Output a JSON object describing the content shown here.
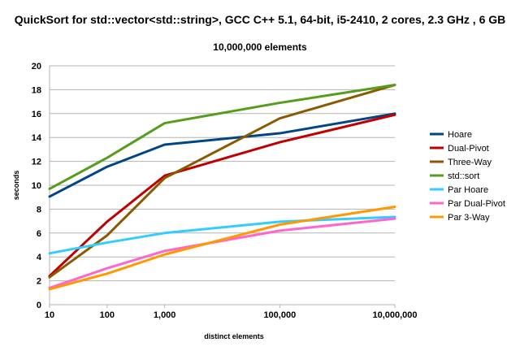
{
  "chart_data": {
    "type": "line",
    "title": "QuickSort for std::vector<std::string>, GCC C++ 5.1, 64-bit, i5-2410, 2 cores, 2.3 GHz , 6 GB",
    "subtitle": "10,000,000 elements",
    "xlabel": "distinct elements",
    "ylabel": "seconds",
    "x_scale": "log",
    "categories": [
      "10",
      "100",
      "1,000",
      "100,000",
      "10,000,000"
    ],
    "x": [
      10,
      100,
      1000,
      100000,
      10000000
    ],
    "ylim": [
      0,
      20
    ],
    "y_ticks": [
      0,
      2,
      4,
      6,
      8,
      10,
      12,
      14,
      16,
      18,
      20
    ],
    "grid": "horizontal",
    "legend_position": "right",
    "series": [
      {
        "name": "Hoare",
        "color": "#004586",
        "values": [
          9.05,
          11.55,
          13.4,
          14.35,
          16.0
        ]
      },
      {
        "name": "Dual-Pivot",
        "color": "#c00000",
        "values": [
          2.4,
          6.95,
          10.8,
          13.6,
          15.9
        ]
      },
      {
        "name": "Three-Way",
        "color": "#8b5a00",
        "values": [
          2.3,
          5.8,
          10.6,
          15.6,
          18.4
        ]
      },
      {
        "name": "std::sort",
        "color": "#579d1c",
        "values": [
          9.7,
          12.3,
          15.2,
          16.9,
          18.4
        ]
      },
      {
        "name": "Par Hoare",
        "color": "#33ccff",
        "values": [
          4.3,
          5.2,
          6.0,
          6.95,
          7.35
        ]
      },
      {
        "name": "Par Dual-Pivot",
        "color": "#ff66cc",
        "values": [
          1.4,
          3.05,
          4.5,
          6.2,
          7.2
        ]
      },
      {
        "name": "Par 3-Way",
        "color": "#ff9900",
        "values": [
          1.3,
          2.6,
          4.2,
          6.7,
          8.2
        ]
      }
    ]
  }
}
